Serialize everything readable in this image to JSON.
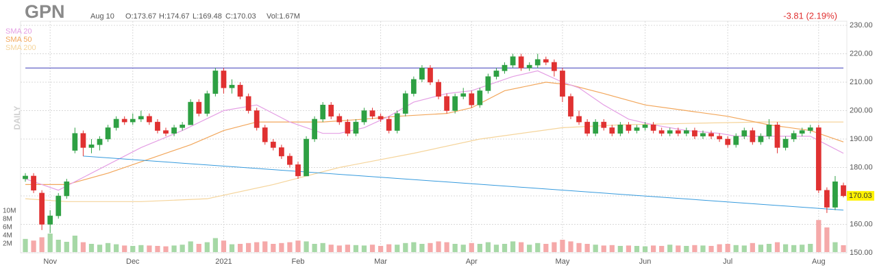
{
  "header": {
    "ticker": "GPN",
    "date": "Aug 10",
    "open": "O:173.67",
    "high": "H:174.67",
    "low": "L:169.48",
    "close": "C:170.03",
    "volume": "Vol:1.67M",
    "change": "-3.81 (2.19%)",
    "period": "DAILY"
  },
  "chart_data": {
    "type": "candlestick",
    "up_color": "#2ea043",
    "down_color": "#e03131",
    "volume_up_color": "#a6d8a6",
    "volume_down_color": "#f5a9a9",
    "ylim": [
      150,
      230
    ],
    "yticks": [
      {
        "value": 150,
        "label": "150.00"
      },
      {
        "value": 160,
        "label": "160.00"
      },
      {
        "value": 170,
        "label": "170.00"
      },
      {
        "value": 180,
        "label": "180.00"
      },
      {
        "value": 190,
        "label": "190.00"
      },
      {
        "value": 200,
        "label": "200.00"
      },
      {
        "value": 210,
        "label": "210.00"
      },
      {
        "value": 220,
        "label": "220.00"
      },
      {
        "value": 230,
        "label": "230.00"
      }
    ],
    "xlim": [
      0,
      99
    ],
    "xticks": [
      {
        "value": 3,
        "label": "Nov"
      },
      {
        "value": 13,
        "label": "Dec"
      },
      {
        "value": 24,
        "label": "2021"
      },
      {
        "value": 33,
        "label": "Feb"
      },
      {
        "value": 43,
        "label": "Mar"
      },
      {
        "value": 54,
        "label": "Apr"
      },
      {
        "value": 65,
        "label": "May"
      },
      {
        "value": 75,
        "label": "Jun"
      },
      {
        "value": 85,
        "label": "Jul"
      },
      {
        "value": 96,
        "label": "Aug"
      }
    ],
    "volume_lim": [
      0,
      10
    ],
    "volume_ticks": [
      {
        "value": 2,
        "label": "2M"
      },
      {
        "value": 4,
        "label": "4M"
      },
      {
        "value": 6,
        "label": "6M"
      },
      {
        "value": 8,
        "label": "8M"
      },
      {
        "value": 10,
        "label": "10M"
      }
    ],
    "ohlc": [
      [
        176,
        178,
        175,
        177
      ],
      [
        177,
        178,
        171,
        172
      ],
      [
        171,
        172,
        158,
        160
      ],
      [
        160,
        165,
        157,
        163
      ],
      [
        163,
        171,
        162,
        170
      ],
      [
        170,
        176,
        169,
        175
      ],
      [
        186,
        194,
        185,
        192
      ],
      [
        192,
        193,
        184,
        187
      ],
      [
        187,
        190,
        185,
        188
      ],
      [
        188,
        191,
        186,
        190
      ],
      [
        190,
        195,
        189,
        194
      ],
      [
        194,
        198,
        193,
        197
      ],
      [
        197,
        198,
        195,
        196
      ],
      [
        196,
        199,
        195,
        197
      ],
      [
        197,
        200,
        196,
        198
      ],
      [
        198,
        199,
        195,
        196
      ],
      [
        196,
        197,
        192,
        193
      ],
      [
        193,
        194,
        191,
        192
      ],
      [
        192,
        195,
        191,
        194
      ],
      [
        194,
        196,
        193,
        195
      ],
      [
        195,
        204,
        195,
        203
      ],
      [
        203,
        204,
        198,
        199
      ],
      [
        199,
        207,
        198,
        206
      ],
      [
        206,
        215,
        205,
        214
      ],
      [
        214,
        215,
        206,
        208
      ],
      [
        208,
        211,
        206,
        209
      ],
      [
        209,
        210,
        204,
        205
      ],
      [
        205,
        206,
        199,
        200
      ],
      [
        200,
        201,
        193,
        194
      ],
      [
        194,
        195,
        188,
        189
      ],
      [
        189,
        190,
        186,
        187
      ],
      [
        187,
        188,
        183,
        184
      ],
      [
        184,
        185,
        180,
        181
      ],
      [
        181,
        182,
        176,
        177
      ],
      [
        177,
        191,
        177,
        190
      ],
      [
        190,
        198,
        189,
        197
      ],
      [
        197,
        203,
        196,
        202
      ],
      [
        202,
        203,
        197,
        198
      ],
      [
        198,
        199,
        195,
        196
      ],
      [
        196,
        197,
        191,
        192
      ],
      [
        192,
        197,
        191,
        196
      ],
      [
        196,
        201,
        195,
        200
      ],
      [
        200,
        201,
        197,
        198
      ],
      [
        198,
        199,
        196,
        197
      ],
      [
        197,
        198,
        192,
        193
      ],
      [
        193,
        200,
        192,
        199
      ],
      [
        199,
        207,
        198,
        206
      ],
      [
        206,
        212,
        205,
        211
      ],
      [
        211,
        216,
        210,
        215
      ],
      [
        215,
        216,
        209,
        210
      ],
      [
        210,
        211,
        204,
        205
      ],
      [
        205,
        206,
        199,
        200
      ],
      [
        200,
        206,
        199,
        205
      ],
      [
        205,
        208,
        204,
        206
      ],
      [
        206,
        207,
        201,
        202
      ],
      [
        202,
        208,
        201,
        207
      ],
      [
        207,
        213,
        206,
        212
      ],
      [
        212,
        215,
        211,
        214
      ],
      [
        214,
        217,
        213,
        216
      ],
      [
        216,
        220,
        215,
        219
      ],
      [
        219,
        220,
        214,
        215
      ],
      [
        215,
        217,
        214,
        216
      ],
      [
        216,
        220,
        215,
        218
      ],
      [
        218,
        219,
        216,
        217
      ],
      [
        217,
        218,
        212,
        214
      ],
      [
        214,
        215,
        203,
        205
      ],
      [
        205,
        206,
        197,
        198
      ],
      [
        198,
        200,
        195,
        196
      ],
      [
        196,
        197,
        191,
        192
      ],
      [
        192,
        197,
        191,
        196
      ],
      [
        196,
        197,
        193,
        194
      ],
      [
        194,
        195,
        191,
        192
      ],
      [
        192,
        196,
        191,
        195
      ],
      [
        195,
        196,
        192,
        193
      ],
      [
        193,
        195,
        192,
        194
      ],
      [
        194,
        196,
        193,
        195
      ],
      [
        195,
        196,
        192,
        193
      ],
      [
        193,
        194,
        191,
        192
      ],
      [
        192,
        194,
        191,
        193
      ],
      [
        193,
        194,
        191,
        192
      ],
      [
        192,
        194,
        191,
        193
      ],
      [
        193,
        194,
        190,
        191
      ],
      [
        191,
        193,
        190,
        192
      ],
      [
        192,
        193,
        190,
        191
      ],
      [
        191,
        192,
        189,
        190
      ],
      [
        190,
        191,
        187,
        188
      ],
      [
        188,
        192,
        187,
        191
      ],
      [
        191,
        194,
        190,
        193
      ],
      [
        193,
        194,
        188,
        189
      ],
      [
        189,
        192,
        188,
        191
      ],
      [
        191,
        197,
        190,
        195
      ],
      [
        195,
        196,
        185,
        187
      ],
      [
        187,
        191,
        186,
        190
      ],
      [
        190,
        193,
        189,
        192
      ],
      [
        192,
        194,
        191,
        193
      ],
      [
        193,
        195,
        192,
        194
      ],
      [
        194,
        195,
        171,
        172
      ],
      [
        172,
        173,
        164,
        166
      ],
      [
        166,
        177,
        165,
        175
      ],
      [
        173.67,
        174.67,
        169.48,
        170.03
      ]
    ],
    "volume": [
      3.2,
      2.8,
      3.6,
      4.5,
      3.0,
      2.5,
      4.0,
      2.4,
      2.0,
      1.8,
      2.2,
      1.9,
      1.6,
      1.5,
      1.7,
      1.6,
      1.5,
      1.4,
      1.6,
      1.8,
      2.6,
      2.0,
      2.4,
      3.4,
      2.8,
      1.9,
      2.0,
      2.2,
      2.4,
      2.6,
      2.0,
      2.2,
      2.4,
      2.8,
      2.6,
      2.0,
      2.2,
      1.8,
      1.6,
      1.8,
      1.7,
      1.6,
      1.8,
      1.5,
      1.9,
      1.8,
      2.2,
      2.4,
      2.0,
      2.2,
      2.6,
      2.4,
      2.0,
      1.8,
      2.2,
      2.0,
      2.4,
      1.8,
      2.0,
      2.6,
      2.4,
      1.8,
      2.2,
      2.0,
      2.4,
      3.0,
      2.6,
      2.2,
      2.0,
      1.8,
      1.6,
      1.7,
      1.5,
      1.6,
      1.5,
      1.4,
      1.6,
      1.5,
      1.8,
      1.6,
      1.5,
      1.7,
      1.6,
      1.5,
      1.9,
      2.0,
      1.7,
      1.6,
      2.2,
      1.8,
      2.0,
      2.4,
      1.9,
      1.7,
      1.8,
      2.0,
      7.8,
      6.0,
      2.4,
      1.67
    ],
    "series": [
      {
        "name": "SMA 20",
        "color": "#e49ee4",
        "x": [
          0,
          4,
          14,
          19,
          24,
          28,
          32,
          36,
          38,
          41,
          44,
          47,
          51,
          54,
          59,
          62,
          65,
          67,
          70,
          73,
          76,
          80,
          84,
          86,
          91,
          95,
          97,
          99
        ],
        "values": [
          176,
          172,
          187,
          193,
          200,
          202,
          196,
          192,
          192,
          194,
          198,
          203,
          206,
          207,
          212,
          214,
          210,
          208,
          202,
          197,
          195,
          193,
          192,
          191,
          191,
          191,
          188,
          185
        ]
      },
      {
        "name": "SMA 50",
        "color": "#f2a65a",
        "x": [
          0,
          5,
          10,
          15,
          20,
          24,
          28,
          32,
          36,
          41,
          45,
          51,
          54,
          58,
          63,
          66,
          70,
          75,
          80,
          85,
          90,
          95,
          99
        ],
        "values": [
          174,
          174,
          178,
          183,
          188,
          193,
          196,
          196,
          196,
          197,
          198,
          199,
          201,
          207,
          210,
          209,
          206,
          202,
          200,
          198,
          195,
          193,
          189
        ]
      },
      {
        "name": "SMA 200",
        "color": "#f5d49a",
        "x": [
          0,
          5,
          14,
          22,
          30,
          38,
          47,
          55,
          65,
          72,
          80,
          89,
          99
        ],
        "values": [
          169,
          168,
          168,
          169,
          174,
          180,
          185,
          190,
          194,
          195,
          195.5,
          196,
          196
        ]
      }
    ],
    "lines": [
      {
        "color": "#3b3bb8",
        "x": [
          0,
          99
        ],
        "values": [
          215,
          215
        ]
      },
      {
        "color": "#3399dd",
        "x": [
          7,
          99
        ],
        "values": [
          184,
          165
        ]
      }
    ]
  }
}
